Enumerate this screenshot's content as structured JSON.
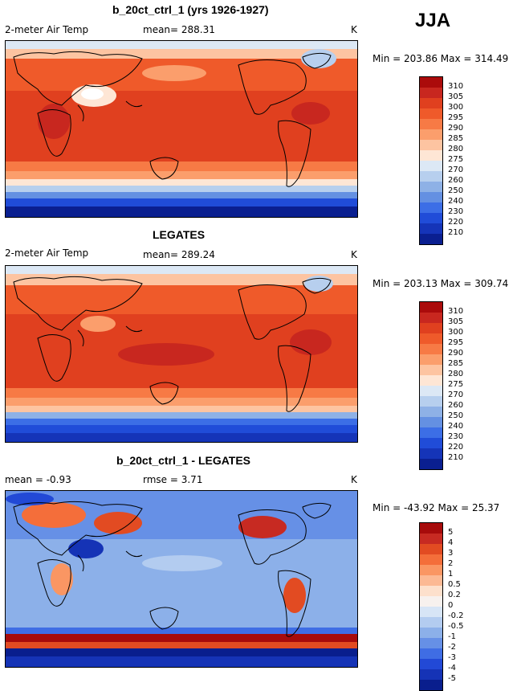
{
  "season": "JJA",
  "colors": {
    "abs_scale": [
      "#ab0b0b",
      "#c8271f",
      "#e0401f",
      "#ef5a2a",
      "#f77a45",
      "#fb9e6c",
      "#fdc4a1",
      "#fee6d5",
      "#dce8f5",
      "#b7cfee",
      "#8eb1e6",
      "#6490e2",
      "#3c6ee6",
      "#204cd8",
      "#1534b8",
      "#0a1f90"
    ],
    "diff_scale": [
      "#a70b0b",
      "#c72a22",
      "#e24b22",
      "#f46e3a",
      "#fa9663",
      "#fcb994",
      "#fde0cc",
      "#f7f1ee",
      "#d7e5f6",
      "#b3ccf0",
      "#8cb0e9",
      "#6690e6",
      "#3f6de4",
      "#2249d6",
      "#1533b6",
      "#091e8d"
    ]
  },
  "panels": [
    {
      "title": "b_20ct_ctrl_1 (yrs 1926-1927)",
      "variable": "2-meter Air Temp",
      "stat": "mean= 288.31",
      "units": "K",
      "minmax": "Min = 203.86 Max = 314.49",
      "ticks": [
        "310",
        "305",
        "300",
        "295",
        "290",
        "285",
        "280",
        "275",
        "270",
        "260",
        "250",
        "240",
        "230",
        "220",
        "210"
      ]
    },
    {
      "title": "LEGATES",
      "variable": "2-meter Air Temp",
      "stat": "mean= 289.24",
      "units": "K",
      "minmax": "Min = 203.13 Max = 309.74",
      "ticks": [
        "310",
        "305",
        "300",
        "295",
        "290",
        "285",
        "280",
        "275",
        "270",
        "260",
        "250",
        "240",
        "230",
        "220",
        "210"
      ]
    },
    {
      "title": "b_20ct_ctrl_1 - LEGATES",
      "variable": "mean =  -0.93",
      "stat": "rmse =   3.71",
      "units": "K",
      "minmax": "Min = -43.92 Max =  25.37",
      "ticks": [
        "5",
        "4",
        "3",
        "2",
        "1",
        "0.5",
        "0.2",
        "0",
        "-0.2",
        "-0.5",
        "-1",
        "-2",
        "-3",
        "-4",
        "-5"
      ]
    }
  ]
}
